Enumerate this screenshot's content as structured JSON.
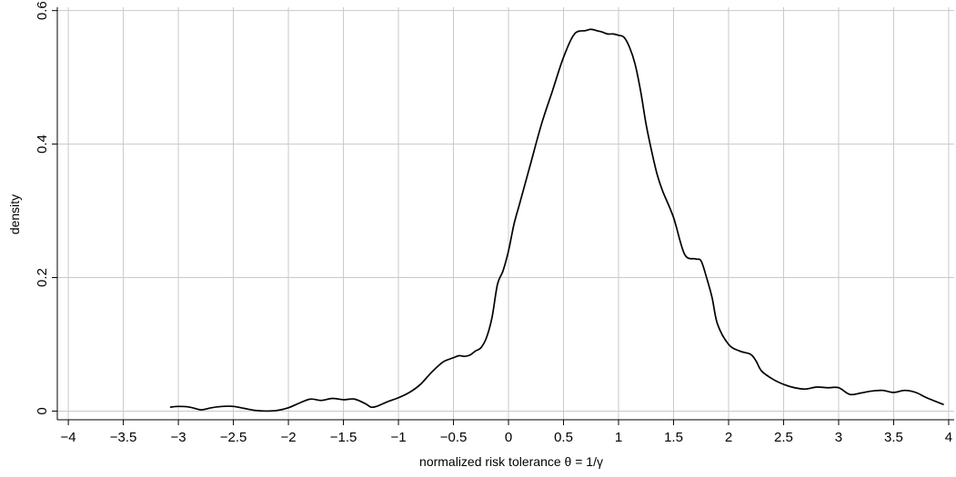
{
  "chart_data": {
    "type": "line",
    "title": "",
    "xlabel": "normalized risk tolerance θ = 1/γ",
    "ylabel": "density",
    "xlim": [
      -4.1,
      4.05
    ],
    "ylim": [
      -0.013,
      0.605
    ],
    "x_ticks": [
      -4,
      -3.5,
      -3,
      -2.5,
      -2,
      -1.5,
      -1,
      -0.5,
      0,
      0.5,
      1,
      1.5,
      2,
      2.5,
      3,
      3.5,
      4
    ],
    "x_tick_labels": [
      "−4",
      "−3.5",
      "−3",
      "−2.5",
      "−2",
      "−1.5",
      "−1",
      "−0.5",
      "0",
      "0.5",
      "1",
      "1.5",
      "2",
      "2.5",
      "3",
      "3.5",
      "4"
    ],
    "y_ticks": [
      0,
      0.2,
      0.4,
      0.6
    ],
    "y_tick_labels": [
      "0",
      "0.2",
      "0.4",
      "0.6"
    ],
    "x_grid": true,
    "y_grid": true,
    "legend": "none",
    "line_color": "#000000",
    "grid_color": "#c9c9c9",
    "series": [
      {
        "x": [
          -3.07,
          -3.0,
          -2.9,
          -2.8,
          -2.75,
          -2.7,
          -2.6,
          -2.5,
          -2.4,
          -2.3,
          -2.2,
          -2.1,
          -2.0,
          -1.9,
          -1.8,
          -1.7,
          -1.6,
          -1.5,
          -1.4,
          -1.3,
          -1.25,
          -1.2,
          -1.1,
          -1.0,
          -0.9,
          -0.8,
          -0.7,
          -0.6,
          -0.55,
          -0.5,
          -0.45,
          -0.4,
          -0.35,
          -0.3,
          -0.25,
          -0.2,
          -0.15,
          -0.1,
          -0.05,
          0.0,
          0.05,
          0.1,
          0.15,
          0.2,
          0.3,
          0.4,
          0.5,
          0.6,
          0.7,
          0.75,
          0.8,
          0.85,
          0.9,
          0.95,
          1.0,
          1.05,
          1.1,
          1.15,
          1.2,
          1.25,
          1.3,
          1.35,
          1.4,
          1.5,
          1.6,
          1.7,
          1.75,
          1.8,
          1.85,
          1.9,
          2.0,
          2.1,
          2.2,
          2.25,
          2.3,
          2.4,
          2.5,
          2.6,
          2.7,
          2.8,
          2.9,
          3.0,
          3.1,
          3.2,
          3.3,
          3.4,
          3.5,
          3.6,
          3.7,
          3.8,
          3.95
        ],
        "y": [
          0.006,
          0.007,
          0.006,
          0.002,
          0.003,
          0.005,
          0.007,
          0.007,
          0.004,
          0.001,
          0.0,
          0.001,
          0.005,
          0.012,
          0.018,
          0.016,
          0.019,
          0.017,
          0.018,
          0.011,
          0.006,
          0.007,
          0.014,
          0.02,
          0.028,
          0.04,
          0.058,
          0.073,
          0.077,
          0.08,
          0.083,
          0.082,
          0.084,
          0.09,
          0.095,
          0.11,
          0.14,
          0.19,
          0.21,
          0.24,
          0.28,
          0.31,
          0.34,
          0.37,
          0.43,
          0.48,
          0.53,
          0.565,
          0.57,
          0.572,
          0.57,
          0.568,
          0.565,
          0.565,
          0.563,
          0.56,
          0.545,
          0.52,
          0.48,
          0.43,
          0.39,
          0.355,
          0.33,
          0.29,
          0.235,
          0.228,
          0.225,
          0.2,
          0.17,
          0.13,
          0.1,
          0.09,
          0.085,
          0.075,
          0.06,
          0.048,
          0.04,
          0.035,
          0.033,
          0.036,
          0.035,
          0.035,
          0.025,
          0.027,
          0.03,
          0.031,
          0.028,
          0.031,
          0.028,
          0.02,
          0.01
        ]
      }
    ]
  }
}
